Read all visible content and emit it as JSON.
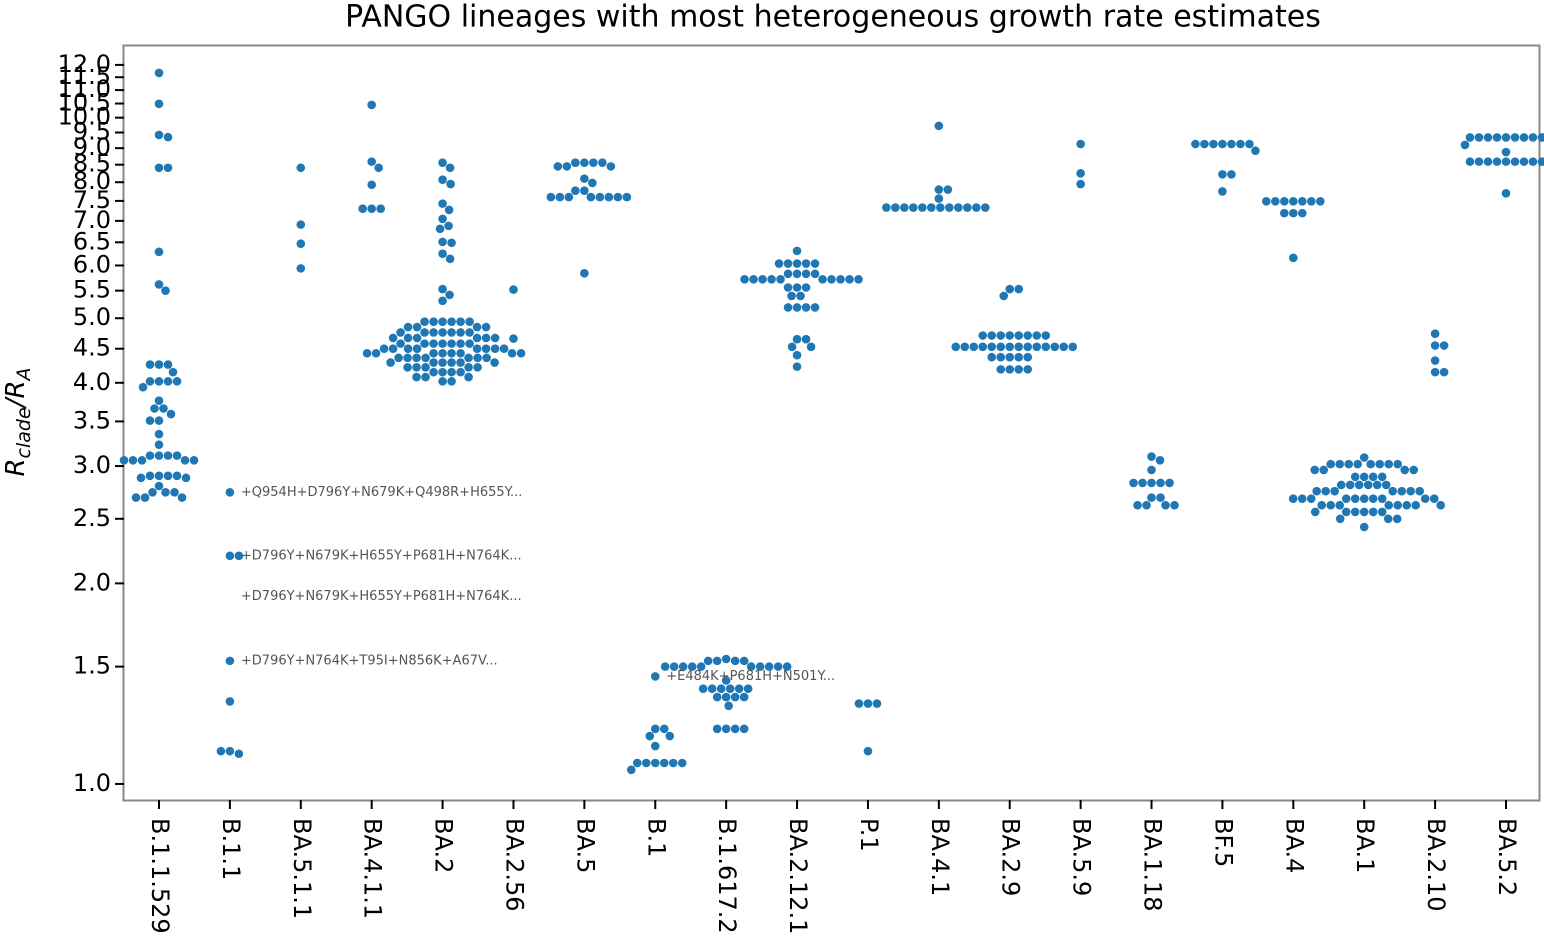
{
  "chart_data": {
    "type": "swarm",
    "title": "PANGO lineages with most heterogeneous growth rate estimates",
    "ylabel": [
      "R",
      "clade",
      "/R",
      "A"
    ],
    "log_y": true,
    "color": "#1f77b4",
    "categories": [
      "B.1.1.529",
      "B.1.1",
      "BA.5.1.1",
      "BA.4.1.1",
      "BA.2",
      "BA.2.56",
      "BA.5",
      "B.1",
      "B.1.617.2",
      "BA.2.12.1",
      "P.1",
      "BA.4.1",
      "BA.2.9",
      "BA.5.9",
      "BA.1.18",
      "BF.5",
      "BA.4",
      "BA.1",
      "BA.2.10",
      "BA.5.2"
    ],
    "values": [
      [
        11.67,
        10.49,
        9.42,
        9.35,
        8.41,
        8.41,
        6.29,
        5.62,
        5.5,
        4.26,
        4.26,
        4.26,
        4.15,
        4.02,
        4.02,
        4.02,
        4.02,
        3.94,
        3.76,
        3.66,
        3.66,
        3.59,
        3.51,
        3.51,
        3.35,
        3.23,
        3.11,
        3.11,
        3.11,
        3.11,
        3.06,
        3.06,
        3.06,
        3.06,
        3.06,
        2.9,
        2.9,
        2.9,
        2.9,
        2.88,
        2.88,
        2.8,
        2.74,
        2.74,
        2.74,
        2.69,
        2.69,
        2.69
      ],
      [
        2.74,
        2.2,
        2.2,
        1.53,
        1.33,
        1.12,
        1.11,
        1.12
      ],
      [
        8.41,
        6.91,
        6.47,
        5.94
      ],
      [
        10.45,
        8.59,
        8.41,
        7.93,
        7.3,
        7.3,
        7.3
      ],
      [
        8.56,
        8.41,
        8.07,
        7.95,
        7.43,
        7.27,
        7.05,
        6.88,
        6.81,
        6.51,
        6.49,
        6.25,
        6.14,
        5.53,
        5.42,
        5.31,
        4.94,
        4.94,
        4.94,
        4.94,
        4.94,
        4.94,
        4.85,
        4.85,
        4.85,
        4.85,
        4.76,
        4.76,
        4.76,
        4.76,
        4.76,
        4.76,
        4.76,
        4.67,
        4.67,
        4.67,
        4.67,
        4.67,
        4.67,
        4.58,
        4.58,
        4.58,
        4.58,
        4.58,
        4.58,
        4.58,
        4.5,
        4.5,
        4.5,
        4.5,
        4.5,
        4.5,
        4.5,
        4.5,
        4.43,
        4.43,
        4.43,
        4.43,
        4.43,
        4.43,
        4.43,
        4.43,
        4.36,
        4.36,
        4.36,
        4.36,
        4.36,
        4.36,
        4.36,
        4.29,
        4.29,
        4.29,
        4.29,
        4.29,
        4.29,
        4.22,
        4.22,
        4.22,
        4.22,
        4.22,
        4.15,
        4.15,
        4.15,
        4.15,
        4.08,
        4.08,
        4.08,
        4.02,
        4.02
      ],
      [
        5.52,
        4.66
      ],
      [
        8.56,
        8.56,
        8.56,
        8.56,
        8.45,
        8.45,
        8.45,
        8.1,
        7.98,
        7.77,
        7.77,
        7.6,
        7.6,
        7.6,
        7.6,
        7.6,
        7.6,
        7.6,
        7.6,
        5.84
      ],
      [
        1.45,
        1.21,
        1.21,
        1.18,
        1.18,
        1.14,
        1.075,
        1.075,
        1.075,
        1.075,
        1.075,
        1.075,
        1.05
      ],
      [
        1.54,
        1.53,
        1.53,
        1.53,
        1.53,
        1.5,
        1.5,
        1.5,
        1.5,
        1.5,
        1.5,
        1.5,
        1.5,
        1.5,
        1.5,
        1.43,
        1.39,
        1.39,
        1.39,
        1.39,
        1.39,
        1.39,
        1.35,
        1.35,
        1.35,
        1.35,
        1.31,
        1.21,
        1.21,
        1.21,
        1.21
      ],
      [
        6.31,
        6.04,
        6.04,
        6.04,
        6.04,
        6.04,
        5.83,
        5.83,
        5.83,
        5.83,
        5.72,
        5.72,
        5.72,
        5.72,
        5.72,
        5.72,
        5.72,
        5.72,
        5.72,
        5.72,
        5.56,
        5.56,
        5.56,
        5.4,
        5.4,
        5.19,
        5.19,
        5.19,
        5.19,
        4.65,
        4.65,
        4.53,
        4.53,
        4.4,
        4.23
      ],
      [
        1.32,
        1.32,
        1.32,
        1.12
      ],
      [
        9.72,
        7.8,
        7.8,
        7.56,
        7.33,
        7.33,
        7.33,
        7.33,
        7.33,
        7.33,
        7.33,
        7.33,
        7.33,
        7.33,
        7.33,
        7.33
      ],
      [
        5.53,
        5.53,
        5.4,
        4.71,
        4.71,
        4.71,
        4.71,
        4.71,
        4.71,
        4.71,
        4.71,
        4.53,
        4.53,
        4.53,
        4.53,
        4.53,
        4.53,
        4.53,
        4.53,
        4.53,
        4.53,
        4.53,
        4.53,
        4.53,
        4.53,
        4.37,
        4.37,
        4.37,
        4.37,
        4.37,
        4.19,
        4.19,
        4.19,
        4.19
      ],
      [
        9.13,
        8.25,
        7.95
      ],
      [
        3.1,
        3.06,
        2.96,
        2.83,
        2.83,
        2.83,
        2.83,
        2.83,
        2.69,
        2.69,
        2.62,
        2.62,
        2.62,
        2.62
      ],
      [
        9.13,
        9.13,
        9.13,
        9.13,
        9.13,
        9.13,
        9.13,
        8.92,
        8.22,
        8.22,
        7.75
      ],
      [
        7.49,
        7.49,
        7.49,
        7.49,
        7.49,
        7.49,
        7.49,
        7.19,
        7.19,
        7.19,
        6.16
      ],
      [
        3.09,
        3.02,
        3.02,
        3.02,
        3.02,
        3.02,
        3.02,
        3.02,
        3.02,
        2.96,
        2.96,
        2.96,
        2.96,
        2.89,
        2.89,
        2.89,
        2.89,
        2.81,
        2.81,
        2.81,
        2.81,
        2.81,
        2.81,
        2.75,
        2.75,
        2.75,
        2.75,
        2.75,
        2.75,
        2.75,
        2.68,
        2.68,
        2.68,
        2.68,
        2.68,
        2.68,
        2.68,
        2.68,
        2.68,
        2.68,
        2.62,
        2.62,
        2.62,
        2.62,
        2.62,
        2.62,
        2.62,
        2.62,
        2.56,
        2.56,
        2.56,
        2.56,
        2.56,
        2.56,
        2.5,
        2.5,
        2.5,
        2.43
      ],
      [
        4.74,
        4.55,
        4.55,
        4.32,
        4.15,
        4.15
      ],
      [
        9.34,
        9.34,
        9.34,
        9.34,
        9.34,
        9.34,
        9.34,
        9.34,
        9.34,
        9.34,
        9.1,
        8.88,
        8.59,
        8.59,
        8.59,
        8.59,
        8.59,
        8.59,
        8.59,
        8.59,
        8.59,
        7.7
      ]
    ],
    "annotations": [
      {
        "text": "+Q954H+D796Y+N679K+Q498R+H655Y...",
        "category": "B.1.1",
        "y": 2.74
      },
      {
        "text": "+D796Y+N679K+H655Y+P681H+N764K...",
        "category": "B.1.1",
        "y": 2.2
      },
      {
        "text": "+D796Y+N679K+H655Y+P681H+N764K...",
        "category": "B.1.1",
        "y": 1.91
      },
      {
        "text": "+D796Y+N764K+T95I+N856K+A67V...",
        "category": "B.1.1",
        "y": 1.53
      },
      {
        "text": "+E484K+P681H+N501Y...",
        "category": "B.1",
        "y": 1.45
      }
    ],
    "ylim": [
      0.946,
      12.81
    ],
    "yticks": [
      {
        "value": 1,
        "label": "1.0"
      },
      {
        "value": 1.5,
        "label": "1.5"
      },
      {
        "value": 2,
        "label": "2.0"
      },
      {
        "value": 2.5,
        "label": "2.5"
      },
      {
        "value": 3,
        "label": "3.0"
      },
      {
        "value": 3.5,
        "label": "3.5"
      },
      {
        "value": 4,
        "label": "4.0"
      },
      {
        "value": 4.5,
        "label": "4.5"
      },
      {
        "value": 5,
        "label": "5.0"
      },
      {
        "value": 5.5,
        "label": "5.5"
      },
      {
        "value": 6,
        "label": "6.0"
      },
      {
        "value": 6.5,
        "label": "6.5"
      },
      {
        "value": 7,
        "label": "7.0"
      },
      {
        "value": 7.5,
        "label": "7.5"
      },
      {
        "value": 8,
        "label": "8.0"
      },
      {
        "value": 8.5,
        "label": "8.5"
      },
      {
        "value": 9,
        "label": "9.0"
      },
      {
        "value": 9.5,
        "label": "9.5"
      },
      {
        "value": 10,
        "label": "10.0"
      },
      {
        "value": 10.5,
        "label": "10.5"
      },
      {
        "value": 11,
        "label": "11.0"
      },
      {
        "value": 11.5,
        "label": "11.5"
      },
      {
        "value": 12,
        "label": "12.0"
      }
    ]
  }
}
